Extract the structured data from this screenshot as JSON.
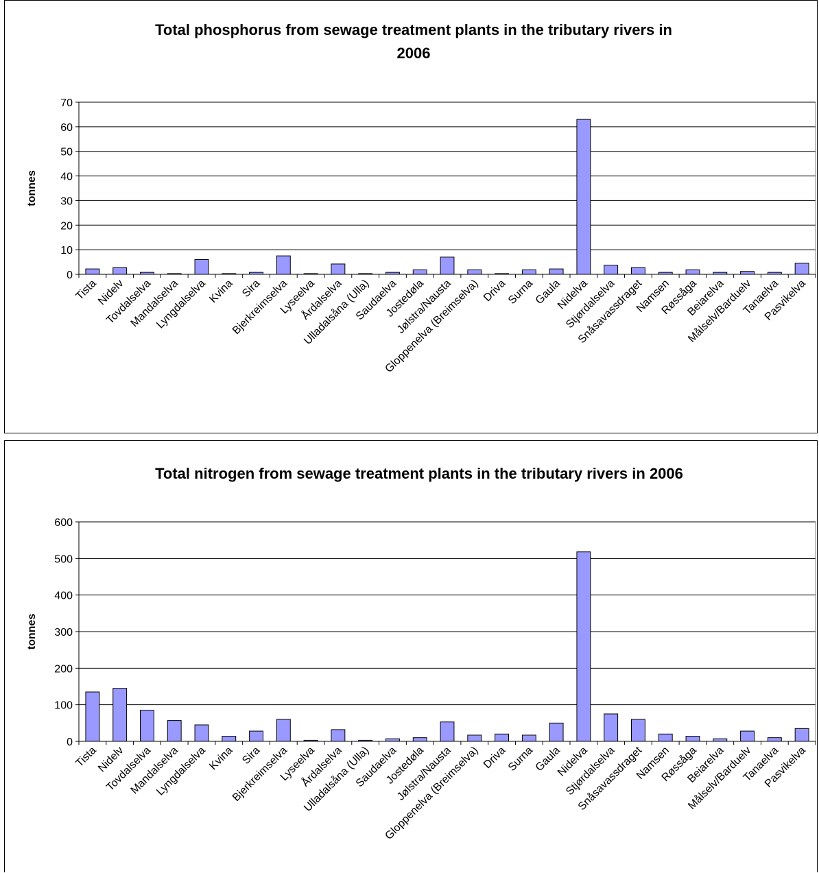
{
  "colors": {
    "bar_fill": "#9999FF",
    "bar_stroke": "#000000",
    "grid": "#000000"
  },
  "chart_data": [
    {
      "type": "bar",
      "title_lines": [
        "Total phosphorus from sewage treatment plants in the tributary rivers in",
        "2006"
      ],
      "xlabel": "",
      "ylabel": "tonnes",
      "ylim": [
        0,
        70
      ],
      "yticks": [
        "0",
        "10",
        "20",
        "30",
        "40",
        "50",
        "60",
        "70"
      ],
      "grid": true,
      "categories": [
        "Tista",
        "Nidelv",
        "Tovdalselva",
        "Mandalselva",
        "Lyngdalselva",
        "Kvina",
        "Sira",
        "Bjerkreimselva",
        "Lyseelva",
        "Årdalselva",
        "Ulladalsåna (Ulla)",
        "Saudaelva",
        "Jostedøla",
        "Jølstra/Nausta",
        "Gloppenelva (Breimselva)",
        "Driva",
        "Surna",
        "Gaula",
        "Nidelva",
        "Stjørdalselva",
        "Snåsavassdraget",
        "Namsen",
        "Røssåga",
        "Beiarelva",
        "Målselv/Barduelv",
        "Tanaelva",
        "Pasvikelva"
      ],
      "values": [
        2.2,
        2.7,
        0.8,
        0.3,
        6.0,
        0.3,
        0.8,
        7.5,
        0.3,
        4.2,
        0.3,
        0.8,
        1.8,
        7.0,
        1.8,
        0.3,
        1.8,
        2.2,
        63.0,
        3.7,
        2.7,
        0.8,
        1.8,
        0.8,
        1.2,
        0.8,
        4.5
      ]
    },
    {
      "type": "bar",
      "title_lines": [
        "Total nitrogen from sewage treatment plants in the tributary rivers in 2006"
      ],
      "xlabel": "",
      "ylabel": "tonnes",
      "ylim": [
        0,
        600
      ],
      "yticks": [
        "0",
        "100",
        "200",
        "300",
        "400",
        "500",
        "600"
      ],
      "grid": true,
      "categories": [
        "Tista",
        "Nidelv",
        "Tovdalselva",
        "Mandalselva",
        "Lyngdalselva",
        "Kvina",
        "Sira",
        "Bjerkreimselva",
        "Lyseelva",
        "Årdalselva",
        "Ulladalsåna (Ulla)",
        "Saudaelva",
        "Jostedøla",
        "Jølstra/Nausta",
        "Gloppenelva (Breimselva)",
        "Driva",
        "Surna",
        "Gaula",
        "Nidelva",
        "Stjørdalselva",
        "Snåsavassdraget",
        "Namsen",
        "Røssåga",
        "Beiarelva",
        "Målselv/Barduelv",
        "Tanaelva",
        "Pasvikelva"
      ],
      "values": [
        135,
        145,
        85,
        57,
        45,
        14,
        28,
        60,
        3,
        32,
        3,
        7,
        10,
        53,
        17,
        20,
        17,
        50,
        518,
        75,
        60,
        20,
        14,
        7,
        28,
        10,
        35
      ]
    }
  ]
}
